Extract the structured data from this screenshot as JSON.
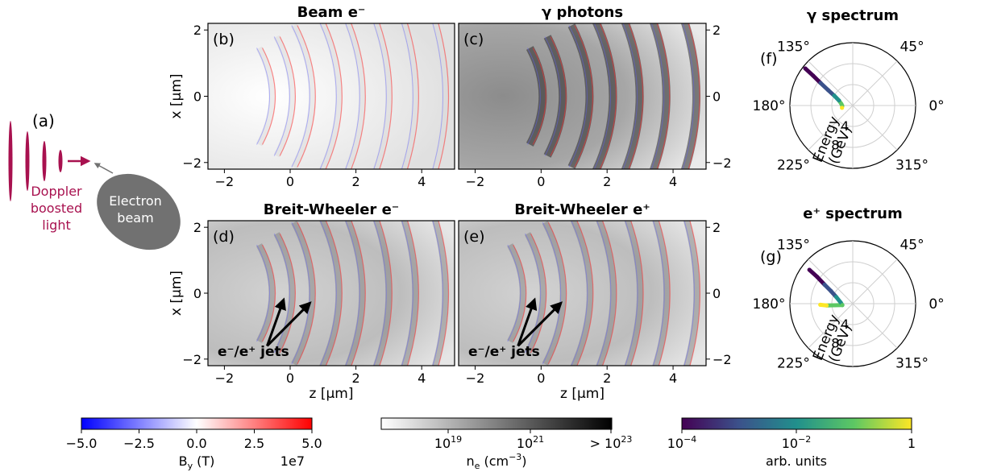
{
  "schematic": {
    "panel_letter": "(a)",
    "light_label": [
      "Doppler",
      "boosted",
      "light"
    ],
    "beam_label": [
      "Electron",
      "beam"
    ],
    "light_color": "#a8114f",
    "beam_color": "#717171"
  },
  "panels": {
    "b": {
      "letter": "(b)",
      "title": "Beam e⁻",
      "field": "beam"
    },
    "c": {
      "letter": "(c)",
      "title": "γ photons",
      "field": "photons"
    },
    "d": {
      "letter": "(d)",
      "title": "Breit-Wheeler e⁻",
      "field": "bw",
      "annotation": "e⁻/e⁺ jets"
    },
    "e": {
      "letter": "(e)",
      "title": "Breit-Wheeler e⁺",
      "field": "bw",
      "annotation": "e⁻/e⁺ jets"
    }
  },
  "axes": {
    "xlabel": "z [μm]",
    "ylabel": "x [μm]",
    "xticks": [
      "−2",
      "0",
      "2",
      "4"
    ],
    "yticks": [
      "2",
      "0",
      "−2"
    ]
  },
  "polar": {
    "f": {
      "letter": "(f)",
      "title": "γ spectrum"
    },
    "g": {
      "letter": "(g)",
      "title": "e⁺ spectrum"
    },
    "angle_labels": [
      "135°",
      "45°",
      "180°",
      "0°",
      "225°",
      "315°"
    ],
    "radial_label": [
      "Energy",
      "(GeV)"
    ],
    "radial_ticks": [
      "4",
      "8"
    ]
  },
  "colorbars": {
    "by": {
      "label": "B",
      "label_sub": "y",
      "label_tail": " (T)",
      "ticks": [
        "−5.0",
        "−2.5",
        "0.0",
        "2.5",
        "5.0"
      ],
      "offset": "1e7",
      "colors": [
        "#0000ff",
        "#ffffff",
        "#ff0000"
      ]
    },
    "ne": {
      "label": "n",
      "label_sub": "e",
      "label_tail": " (cm",
      "label_sup": "−3",
      "label_end": ")",
      "ticks": [
        {
          "base": "10",
          "exp": "19"
        },
        {
          "base": "10",
          "exp": "21"
        },
        {
          "base": "> 10",
          "exp": "23"
        }
      ],
      "colors": [
        "#ffffff",
        "#000000"
      ]
    },
    "arb": {
      "label": "arb. units",
      "ticks": [
        {
          "base": "10",
          "exp": "−4"
        },
        {
          "base": "10",
          "exp": "−2"
        },
        {
          "base": "1",
          "exp": ""
        }
      ],
      "colors": [
        "#440154",
        "#3b528b",
        "#21908c",
        "#5dc863",
        "#fde725"
      ]
    }
  },
  "chart_data": [
    {
      "type": "heatmap",
      "panel": "(b)",
      "title": "Beam e⁻",
      "xlabel": "",
      "ylabel": "x [μm]",
      "xlim": [
        -2.5,
        5
      ],
      "ylim": [
        -2.2,
        2.2
      ],
      "field_wavefronts_z": [
        -0.6,
        0.0,
        0.6,
        1.4,
        2.1,
        2.9,
        3.7,
        4.6
      ],
      "note_colorscale": "B_y (T) ×1e7, −5.0 to 5.0"
    },
    {
      "type": "heatmap",
      "panel": "(c)",
      "title": "γ photons",
      "xlabel": "",
      "ylabel": "",
      "xlim": [
        -2.5,
        5
      ],
      "ylim": [
        -2.2,
        2.2
      ],
      "field_wavefronts_z": [
        0.0,
        0.6,
        1.4,
        2.1,
        2.9,
        3.7,
        4.6
      ]
    },
    {
      "type": "heatmap",
      "panel": "(d)",
      "title": "Breit-Wheeler e⁻",
      "xlabel": "z [μm]",
      "ylabel": "x [μm]",
      "xlim": [
        -2.5,
        5
      ],
      "ylim": [
        -2.2,
        2.2
      ],
      "field_wavefronts_z": [
        -0.6,
        0.0,
        0.6,
        1.4,
        2.1,
        2.9,
        3.7,
        4.6
      ],
      "jet_arrows": [
        {
          "from": [
            -0.7,
            -1.6
          ],
          "to": [
            -0.2,
            -0.2
          ]
        },
        {
          "from": [
            -0.7,
            -1.6
          ],
          "to": [
            0.6,
            -0.3
          ]
        }
      ]
    },
    {
      "type": "heatmap",
      "panel": "(e)",
      "title": "Breit-Wheeler e⁺",
      "xlabel": "z [μm]",
      "ylabel": "",
      "xlim": [
        -2.5,
        5
      ],
      "ylim": [
        -2.2,
        2.2
      ],
      "field_wavefronts_z": [
        -0.6,
        0.0,
        0.6,
        1.4,
        2.1,
        2.9,
        3.7,
        4.6
      ],
      "jet_arrows": [
        {
          "from": [
            -0.7,
            -1.6
          ],
          "to": [
            -0.2,
            -0.2
          ]
        },
        {
          "from": [
            -0.7,
            -1.6
          ],
          "to": [
            0.6,
            -0.3
          ]
        }
      ]
    },
    {
      "type": "scatter",
      "panel": "(f)",
      "title": "γ spectrum",
      "coordinate_system": "polar",
      "radial_label": "Energy (GeV)",
      "r_ticks": [
        4,
        8
      ],
      "r_max": 12,
      "theta_ticks_deg": [
        0,
        45,
        135,
        180,
        225,
        315
      ],
      "points": [
        {
          "theta_deg": 142,
          "E": 11.5
        },
        {
          "theta_deg": 143,
          "E": 9.5
        },
        {
          "theta_deg": 145,
          "E": 7.5
        },
        {
          "theta_deg": 148,
          "E": 5.5
        },
        {
          "theta_deg": 152,
          "E": 4.0
        },
        {
          "theta_deg": 160,
          "E": 2.8
        },
        {
          "theta_deg": 172,
          "E": 2.2
        },
        {
          "theta_deg": 182,
          "E": 2.0
        },
        {
          "theta_deg": 192,
          "E": 2.1
        }
      ]
    },
    {
      "type": "scatter",
      "panel": "(g)",
      "title": "e⁺ spectrum",
      "coordinate_system": "polar",
      "radial_label": "Energy (GeV)",
      "r_ticks": [
        4,
        8
      ],
      "r_max": 12,
      "theta_ticks_deg": [
        0,
        45,
        135,
        180,
        225,
        315
      ],
      "points": [
        {
          "theta_deg": 142,
          "E": 10.5
        },
        {
          "theta_deg": 143,
          "E": 8.5
        },
        {
          "theta_deg": 146,
          "E": 6.5
        },
        {
          "theta_deg": 150,
          "E": 4.8
        },
        {
          "theta_deg": 158,
          "E": 3.4
        },
        {
          "theta_deg": 175,
          "E": 2.3
        },
        {
          "theta_deg": 188,
          "E": 2.0
        },
        {
          "theta_deg": 185,
          "E": 3.6
        },
        {
          "theta_deg": 184,
          "E": 5.0
        },
        {
          "theta_deg": 182,
          "E": 6.2
        }
      ]
    }
  ]
}
